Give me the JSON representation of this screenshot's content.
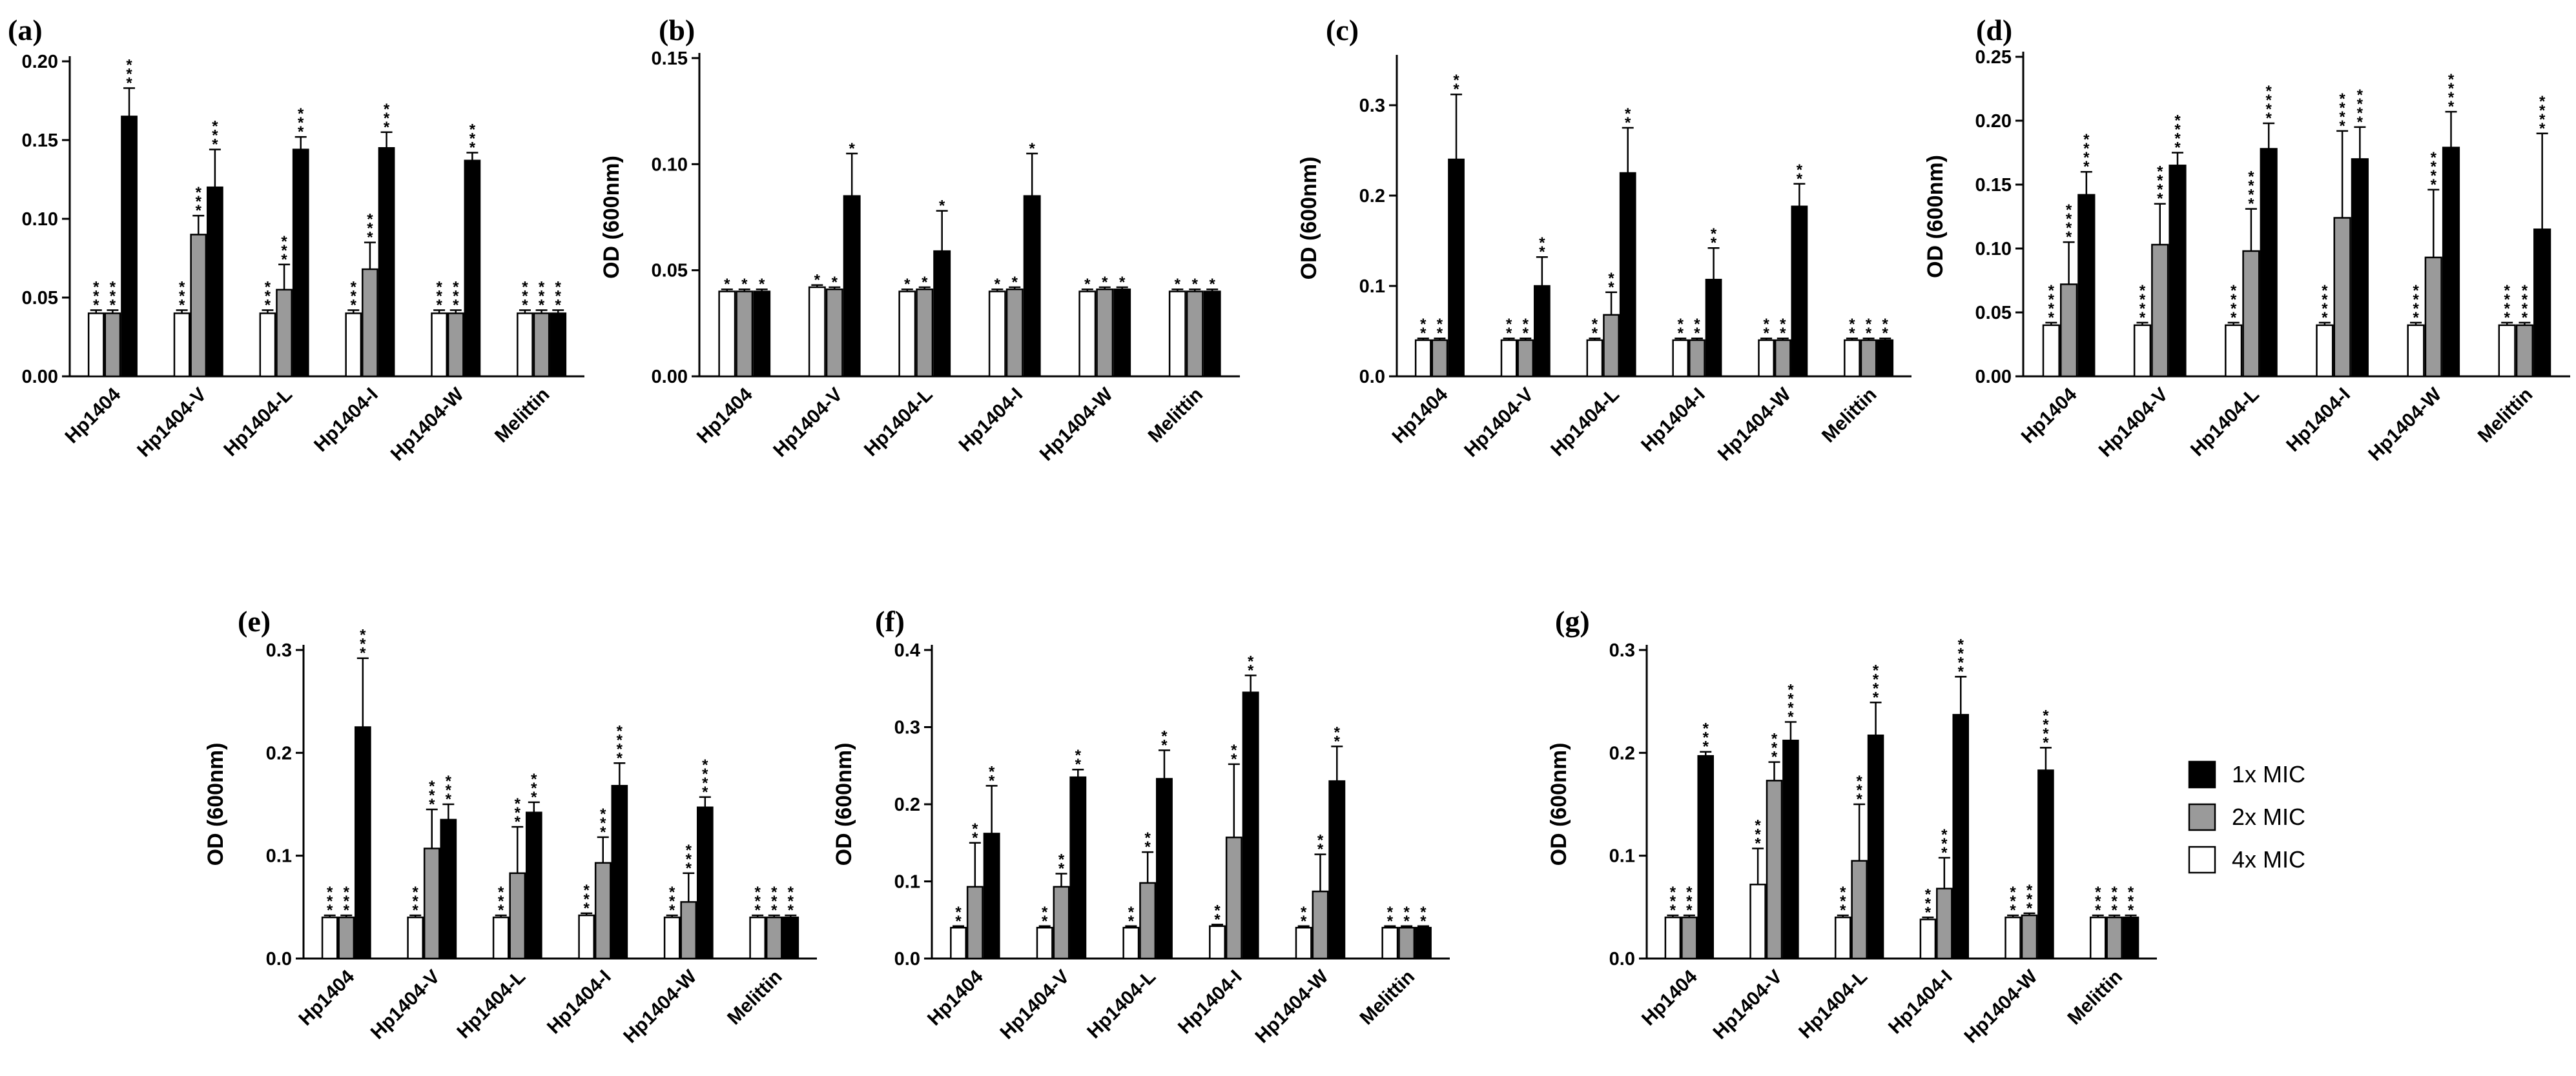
{
  "chart_data": [
    {
      "panel": "(a)",
      "type": "bar",
      "ylabel": "OD (600nm)",
      "ylim": [
        0,
        0.2
      ],
      "yticks": [
        0.0,
        0.05,
        0.1,
        0.15,
        0.2
      ],
      "ytick_labels": [
        "0.00",
        "0.05",
        "0.10",
        "0.15",
        "0.20"
      ],
      "categories": [
        "Hp1404",
        "Hp1404-V",
        "Hp1404-L",
        "Hp1404-I",
        "Hp1404-W",
        "Melittin"
      ],
      "series": [
        {
          "name": "4x MIC",
          "values": [
            0.04,
            0.04,
            0.04,
            0.04,
            0.04,
            0.04
          ],
          "errors": [
            0.002,
            0.002,
            0.002,
            0.002,
            0.002,
            0.002
          ],
          "stars": [
            3,
            3,
            3,
            3,
            3,
            3
          ]
        },
        {
          "name": "2x MIC",
          "values": [
            0.04,
            0.09,
            0.055,
            0.068,
            0.04,
            0.04
          ],
          "errors": [
            0.002,
            0.012,
            0.016,
            0.017,
            0.002,
            0.002
          ],
          "stars": [
            3,
            3,
            3,
            3,
            3,
            3
          ]
        },
        {
          "name": "1x MIC",
          "values": [
            0.165,
            0.12,
            0.144,
            0.145,
            0.137,
            0.04
          ],
          "errors": [
            0.018,
            0.024,
            0.008,
            0.01,
            0.005,
            0.002
          ],
          "stars": [
            3,
            3,
            3,
            3,
            3,
            3
          ]
        }
      ]
    },
    {
      "panel": "(b)",
      "type": "bar",
      "ylabel": "OD (600nm)",
      "ylim": [
        0,
        0.15
      ],
      "yticks": [
        0.0,
        0.05,
        0.1,
        0.15
      ],
      "ytick_labels": [
        "0.00",
        "0.05",
        "0.10",
        "0.15"
      ],
      "categories": [
        "Hp1404",
        "Hp1404-V",
        "Hp1404-L",
        "Hp1404-I",
        "Hp1404-W",
        "Melittin"
      ],
      "series": [
        {
          "name": "4x MIC",
          "values": [
            0.04,
            0.042,
            0.04,
            0.04,
            0.04,
            0.04
          ],
          "errors": [
            0.001,
            0.001,
            0.001,
            0.001,
            0.001,
            0.001
          ],
          "stars": [
            1,
            1,
            1,
            1,
            1,
            1
          ]
        },
        {
          "name": "2x MIC",
          "values": [
            0.04,
            0.041,
            0.041,
            0.041,
            0.041,
            0.04
          ],
          "errors": [
            0.001,
            0.001,
            0.001,
            0.001,
            0.001,
            0.001
          ],
          "stars": [
            1,
            1,
            1,
            1,
            1,
            1
          ]
        },
        {
          "name": "1x MIC",
          "values": [
            0.04,
            0.085,
            0.059,
            0.085,
            0.041,
            0.04
          ],
          "errors": [
            0.001,
            0.02,
            0.019,
            0.02,
            0.001,
            0.001
          ],
          "stars": [
            1,
            1,
            1,
            1,
            1,
            1
          ]
        }
      ]
    },
    {
      "panel": "(c)",
      "type": "bar",
      "ylabel": "OD (600nm)",
      "ylim": [
        0,
        0.35
      ],
      "yticks": [
        0.0,
        0.1,
        0.2,
        0.3
      ],
      "ytick_labels": [
        "0.0",
        "0.1",
        "0.2",
        "0.3"
      ],
      "categories": [
        "Hp1404",
        "Hp1404-V",
        "Hp1404-L",
        "Hp1404-I",
        "Hp1404-W",
        "Melittin"
      ],
      "series": [
        {
          "name": "4x MIC",
          "values": [
            0.04,
            0.04,
            0.04,
            0.04,
            0.04,
            0.04
          ],
          "errors": [
            0.002,
            0.002,
            0.002,
            0.002,
            0.002,
            0.002
          ],
          "stars": [
            2,
            2,
            2,
            2,
            2,
            2
          ]
        },
        {
          "name": "2x MIC",
          "values": [
            0.04,
            0.04,
            0.068,
            0.04,
            0.04,
            0.04
          ],
          "errors": [
            0.002,
            0.002,
            0.025,
            0.002,
            0.002,
            0.002
          ],
          "stars": [
            2,
            2,
            2,
            2,
            2,
            2
          ]
        },
        {
          "name": "1x MIC",
          "values": [
            0.24,
            0.1,
            0.225,
            0.107,
            0.188,
            0.04
          ],
          "errors": [
            0.072,
            0.032,
            0.05,
            0.035,
            0.025,
            0.002
          ],
          "stars": [
            2,
            2,
            2,
            2,
            2,
            2
          ]
        }
      ]
    },
    {
      "panel": "(d)",
      "type": "bar",
      "ylabel": "OD (600nm)",
      "ylim": [
        0,
        0.25
      ],
      "yticks": [
        0.0,
        0.05,
        0.1,
        0.15,
        0.2,
        0.25
      ],
      "ytick_labels": [
        "0.00",
        "0.05",
        "0.10",
        "0.15",
        "0.20",
        "0.25"
      ],
      "categories": [
        "Hp1404",
        "Hp1404-V",
        "Hp1404-L",
        "Hp1404-I",
        "Hp1404-W",
        "Melittin"
      ],
      "series": [
        {
          "name": "4x MIC",
          "values": [
            0.04,
            0.04,
            0.04,
            0.04,
            0.04,
            0.04
          ],
          "errors": [
            0.002,
            0.002,
            0.002,
            0.002,
            0.002,
            0.002
          ],
          "stars": [
            4,
            4,
            4,
            4,
            4,
            4
          ]
        },
        {
          "name": "2x MIC",
          "values": [
            0.072,
            0.103,
            0.098,
            0.124,
            0.093,
            0.04
          ],
          "errors": [
            0.033,
            0.032,
            0.033,
            0.068,
            0.053,
            0.002
          ],
          "stars": [
            4,
            4,
            4,
            4,
            4,
            4
          ]
        },
        {
          "name": "1x MIC",
          "values": [
            0.142,
            0.165,
            0.178,
            0.17,
            0.179,
            0.115
          ],
          "errors": [
            0.018,
            0.01,
            0.02,
            0.025,
            0.028,
            0.075
          ],
          "stars": [
            4,
            4,
            4,
            4,
            4,
            4
          ]
        }
      ]
    },
    {
      "panel": "(e)",
      "type": "bar",
      "ylabel": "OD (600nm)",
      "ylim": [
        0,
        0.3
      ],
      "yticks": [
        0.0,
        0.1,
        0.2,
        0.3
      ],
      "ytick_labels": [
        "0.0",
        "0.1",
        "0.2",
        "0.3"
      ],
      "categories": [
        "Hp1404",
        "Hp1404-V",
        "Hp1404-L",
        "Hp1404-I",
        "Hp1404-W",
        "Melittin"
      ],
      "series": [
        {
          "name": "4x MIC",
          "values": [
            0.04,
            0.04,
            0.04,
            0.042,
            0.04,
            0.04
          ],
          "errors": [
            0.002,
            0.002,
            0.002,
            0.002,
            0.002,
            0.002
          ],
          "stars": [
            3,
            3,
            3,
            3,
            3,
            3
          ]
        },
        {
          "name": "2x MIC",
          "values": [
            0.04,
            0.107,
            0.083,
            0.093,
            0.055,
            0.04
          ],
          "errors": [
            0.002,
            0.038,
            0.045,
            0.025,
            0.028,
            0.002
          ],
          "stars": [
            3,
            3,
            3,
            3,
            3,
            3
          ]
        },
        {
          "name": "1x MIC",
          "values": [
            0.225,
            0.135,
            0.142,
            0.168,
            0.147,
            0.04
          ],
          "errors": [
            0.067,
            0.015,
            0.01,
            0.022,
            0.01,
            0.002
          ],
          "stars": [
            3,
            3,
            3,
            4,
            4,
            3
          ]
        }
      ]
    },
    {
      "panel": "(f)",
      "type": "bar",
      "ylabel": "OD (600nm)",
      "ylim": [
        0,
        0.4
      ],
      "yticks": [
        0.0,
        0.1,
        0.2,
        0.3,
        0.4
      ],
      "ytick_labels": [
        "0.0",
        "0.1",
        "0.2",
        "0.3",
        "0.4"
      ],
      "categories": [
        "Hp1404",
        "Hp1404-V",
        "Hp1404-L",
        "Hp1404-I",
        "Hp1404-W",
        "Melittin"
      ],
      "series": [
        {
          "name": "4x MIC",
          "values": [
            0.04,
            0.04,
            0.04,
            0.042,
            0.04,
            0.04
          ],
          "errors": [
            0.002,
            0.002,
            0.002,
            0.002,
            0.002,
            0.002
          ],
          "stars": [
            2,
            2,
            2,
            2,
            2,
            2
          ]
        },
        {
          "name": "2x MIC",
          "values": [
            0.093,
            0.093,
            0.098,
            0.157,
            0.087,
            0.04
          ],
          "errors": [
            0.057,
            0.017,
            0.04,
            0.095,
            0.048,
            0.002
          ],
          "stars": [
            2,
            2,
            2,
            2,
            2,
            2
          ]
        },
        {
          "name": "1x MIC",
          "values": [
            0.162,
            0.235,
            0.233,
            0.345,
            0.23,
            0.04
          ],
          "errors": [
            0.062,
            0.01,
            0.037,
            0.022,
            0.045,
            0.002
          ],
          "stars": [
            2,
            2,
            2,
            2,
            2,
            2
          ]
        }
      ]
    },
    {
      "panel": "(g)",
      "type": "bar",
      "ylabel": "OD (600nm)",
      "ylim": [
        0,
        0.3
      ],
      "yticks": [
        0.0,
        0.1,
        0.2,
        0.3
      ],
      "ytick_labels": [
        "0.0",
        "0.1",
        "0.2",
        "0.3"
      ],
      "categories": [
        "Hp1404",
        "Hp1404-V",
        "Hp1404-L",
        "Hp1404-I",
        "Hp1404-W",
        "Melittin"
      ],
      "series": [
        {
          "name": "4x MIC",
          "values": [
            0.04,
            0.072,
            0.04,
            0.038,
            0.04,
            0.04
          ],
          "errors": [
            0.002,
            0.035,
            0.002,
            0.002,
            0.002,
            0.002
          ],
          "stars": [
            3,
            3,
            3,
            3,
            3,
            3
          ]
        },
        {
          "name": "2x MIC",
          "values": [
            0.04,
            0.173,
            0.095,
            0.068,
            0.042,
            0.04
          ],
          "errors": [
            0.002,
            0.018,
            0.055,
            0.03,
            0.002,
            0.002
          ],
          "stars": [
            3,
            3,
            3,
            3,
            3,
            3
          ]
        },
        {
          "name": "1x MIC",
          "values": [
            0.197,
            0.212,
            0.217,
            0.237,
            0.183,
            0.04
          ],
          "errors": [
            0.004,
            0.018,
            0.032,
            0.037,
            0.022,
            0.002
          ],
          "stars": [
            3,
            4,
            4,
            4,
            4,
            3
          ]
        }
      ]
    }
  ],
  "legend": {
    "entries": [
      {
        "label": "1x MIC",
        "color": "#000000"
      },
      {
        "label": "2x MIC",
        "color": "#9a9a9a"
      },
      {
        "label": "4x MIC",
        "color": "#ffffff"
      }
    ]
  },
  "colors": {
    "4x MIC": "#ffffff",
    "2x MIC": "#9a9a9a",
    "1x MIC": "#000000"
  }
}
